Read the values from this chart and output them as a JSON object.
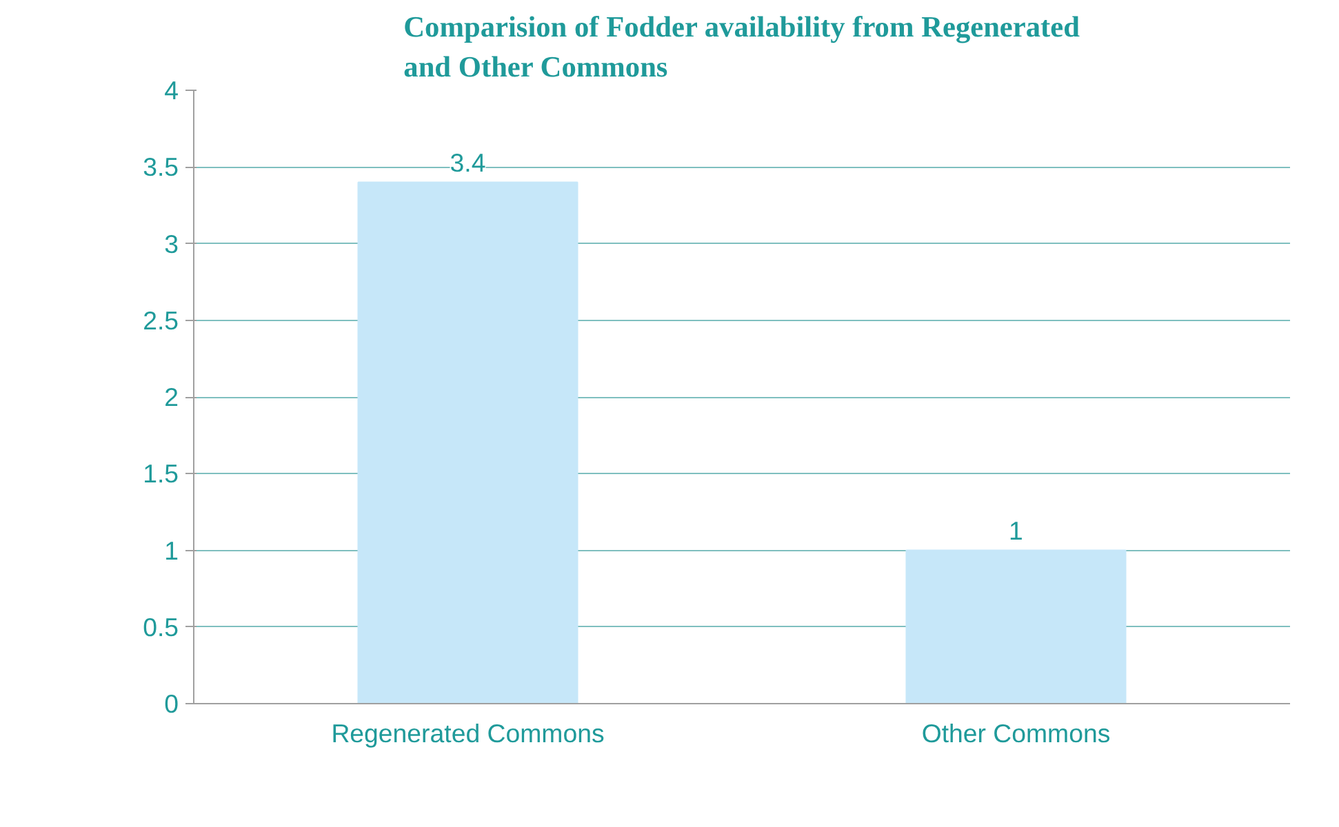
{
  "chart_data": {
    "type": "bar",
    "title": "Comparision of Fodder availability from Regenerated\nand Other Commons",
    "categories": [
      "Regenerated Commons",
      "Other Commons"
    ],
    "values": [
      3.4,
      1
    ],
    "color": "#c6e7f9",
    "ylim": [
      0,
      4
    ],
    "yticks": [
      0,
      0.5,
      1,
      1.5,
      2,
      2.5,
      3,
      3.5,
      4
    ],
    "grid": "y",
    "data_labels": true
  }
}
